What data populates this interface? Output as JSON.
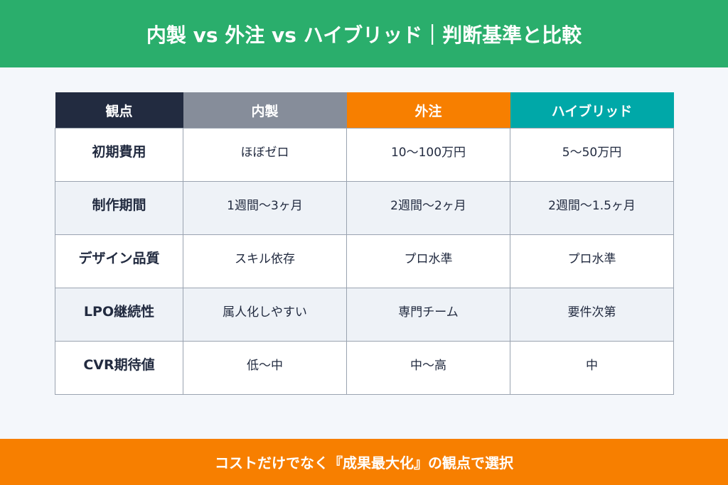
{
  "header": {
    "title": "内製 vs 外注 vs ハイブリッド｜判断基準と比較"
  },
  "table": {
    "columns": [
      "観点",
      "内製",
      "外注",
      "ハイブリッド"
    ],
    "rows": [
      [
        "初期費用",
        "ほぼゼロ",
        "10〜100万円",
        "5〜50万円"
      ],
      [
        "制作期間",
        "1週間〜3ヶ月",
        "2週間〜2ヶ月",
        "2週間〜1.5ヶ月"
      ],
      [
        "デザイン品質",
        "スキル依存",
        "プロ水準",
        "プロ水準"
      ],
      [
        "LPO継続性",
        "属人化しやすい",
        "専門チーム",
        "要件次第"
      ],
      [
        "CVR期待値",
        "低〜中",
        "中〜高",
        "中"
      ]
    ]
  },
  "footer": {
    "text": "コストだけでなく『成果最大化』の観点で選択"
  }
}
